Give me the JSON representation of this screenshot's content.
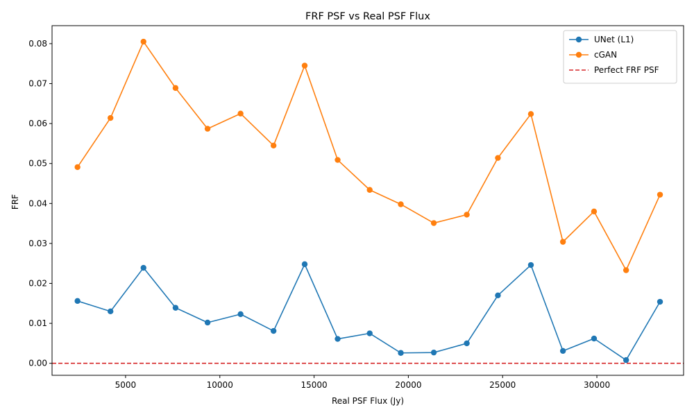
{
  "chart_data": {
    "type": "line",
    "title": "FRF PSF vs Real PSF Flux",
    "xlabel": "Real PSF Flux (Jy)",
    "ylabel": "FRF",
    "xlim": [
      1100,
      34600
    ],
    "ylim": [
      -0.003,
      0.0845
    ],
    "xticks": [
      5000,
      10000,
      15000,
      20000,
      25000,
      30000
    ],
    "xtick_labels": [
      "5000",
      "10000",
      "15000",
      "20000",
      "25000",
      "30000"
    ],
    "yticks": [
      0.0,
      0.01,
      0.02,
      0.03,
      0.04,
      0.05,
      0.06,
      0.07,
      0.08
    ],
    "ytick_labels": [
      "0.00",
      "0.01",
      "0.02",
      "0.03",
      "0.04",
      "0.05",
      "0.06",
      "0.07",
      "0.08"
    ],
    "grid": false,
    "legend_position": "top-right",
    "x": [
      2450,
      4200,
      5950,
      7650,
      9350,
      11100,
      12850,
      14500,
      16250,
      17950,
      19600,
      21350,
      23100,
      24750,
      26500,
      28200,
      29850,
      31550,
      33350
    ],
    "series": [
      {
        "name": "UNet (L1)",
        "color": "#1f77b4",
        "marker": "circle",
        "values": [
          0.0156,
          0.013,
          0.0239,
          0.0139,
          0.0102,
          0.0123,
          0.0081,
          0.0248,
          0.0061,
          0.0075,
          0.0026,
          0.0027,
          0.005,
          0.017,
          0.0246,
          0.0031,
          0.0062,
          0.0008,
          0.0154
        ]
      },
      {
        "name": "cGAN",
        "color": "#ff7f0e",
        "marker": "circle",
        "values": [
          0.0491,
          0.0614,
          0.0805,
          0.0689,
          0.0587,
          0.0625,
          0.0545,
          0.0745,
          0.0509,
          0.0434,
          0.0398,
          0.0351,
          0.0372,
          0.0514,
          0.0624,
          0.0304,
          0.038,
          0.0233,
          0.0422
        ]
      }
    ],
    "reference_lines": [
      {
        "name": "Perfect FRF PSF",
        "y": 0.0,
        "color": "#d62728",
        "style": "dashed"
      }
    ]
  }
}
